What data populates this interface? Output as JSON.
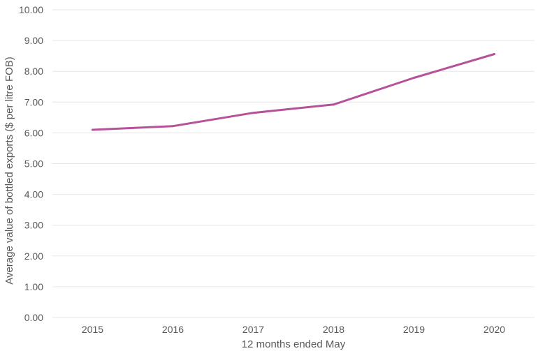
{
  "chart_data": {
    "type": "line",
    "categories": [
      "2015",
      "2016",
      "2017",
      "2018",
      "2019",
      "2020"
    ],
    "series": [
      {
        "values": [
          6.1,
          6.22,
          6.65,
          6.92,
          7.79,
          8.56
        ]
      }
    ],
    "xlabel": "12 months ended May",
    "ylabel": "Average value of bottled exports ($ per litre FOB)",
    "ylim": [
      0,
      10
    ],
    "y_ticks": [
      "0.00",
      "1.00",
      "2.00",
      "3.00",
      "4.00",
      "5.00",
      "6.00",
      "7.00",
      "8.00",
      "9.00",
      "10.00"
    ],
    "grid": true,
    "line_color": "#b5529a"
  }
}
